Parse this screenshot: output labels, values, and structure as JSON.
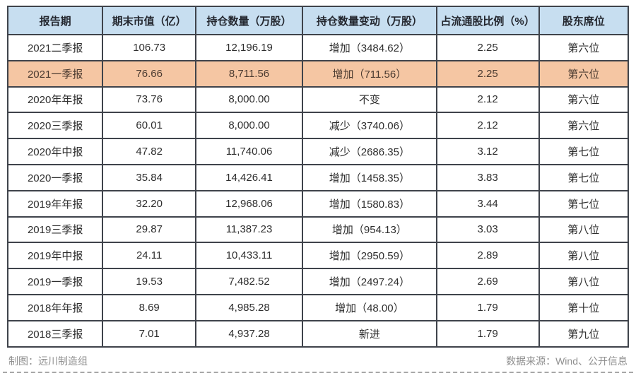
{
  "chart_data": {
    "type": "table",
    "columns": [
      "报告期",
      "期末市值（亿）",
      "持仓数量（万股）",
      "持仓数量变动（万股）",
      "占流通股比例（%）",
      "股东席位"
    ],
    "rows": [
      [
        "2021二季报",
        "106.73",
        "12,196.19",
        "增加（3484.62）",
        "2.25",
        "第六位"
      ],
      [
        "2021一季报",
        "76.66",
        "8,711.56",
        "增加（711.56）",
        "2.25",
        "第六位"
      ],
      [
        "2020年年报",
        "73.76",
        "8,000.00",
        "不变",
        "2.12",
        "第六位"
      ],
      [
        "2020三季报",
        "60.01",
        "8,000.00",
        "减少（3740.06）",
        "2.12",
        "第六位"
      ],
      [
        "2020年中报",
        "47.82",
        "11,740.06",
        "减少（2686.35）",
        "3.12",
        "第七位"
      ],
      [
        "2020一季报",
        "35.84",
        "14,426.41",
        "增加（1458.35）",
        "3.83",
        "第七位"
      ],
      [
        "2019年年报",
        "32.20",
        "12,968.06",
        "增加（1580.83）",
        "3.44",
        "第七位"
      ],
      [
        "2019三季报",
        "29.87",
        "11,387.23",
        "增加（954.13）",
        "3.03",
        "第八位"
      ],
      [
        "2019年中报",
        "24.11",
        "10,433.11",
        "增加（2950.59）",
        "2.89",
        "第八位"
      ],
      [
        "2019一季报",
        "19.53",
        "7,482.52",
        "增加（2497.24）",
        "2.69",
        "第八位"
      ],
      [
        "2018年年报",
        "8.69",
        "4,985.28",
        "增加（48.00）",
        "1.79",
        "第十位"
      ],
      [
        "2018三季报",
        "7.01",
        "4,937.28",
        "新进",
        "1.79",
        "第九位"
      ]
    ],
    "highlighted_row_index": 1,
    "legend_position": "none",
    "grid": true
  },
  "footer": {
    "credit": "制图：远川制造组",
    "source": "数据来源：Wind、公开信息"
  },
  "colors": {
    "header_bg": "#c7def0",
    "highlight_bg": "#f5c6a3",
    "border": "#3f434b",
    "text": "#2e2e2e",
    "footer_text": "#8f8f8f"
  }
}
